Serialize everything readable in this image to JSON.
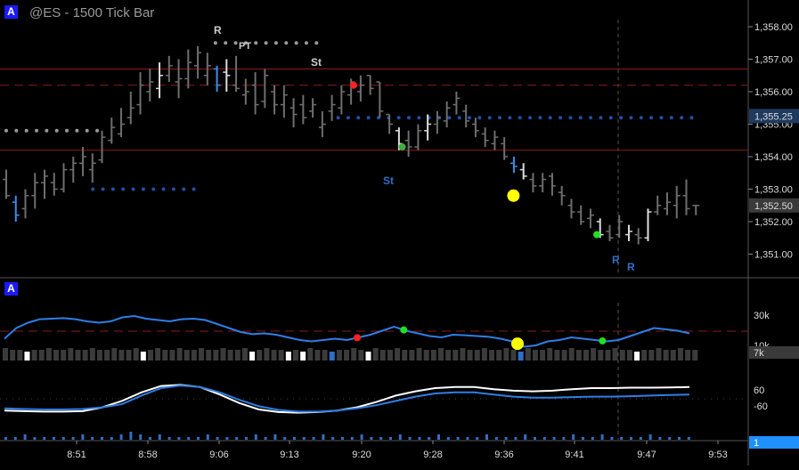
{
  "window": {
    "title": "@ES - 1500 Tick Bar",
    "panel_badge_top": "A",
    "panel_badge_bottom": "A"
  },
  "price_axis": {
    "ticks": [
      "1,358.00",
      "1,357.00",
      "1,356.00",
      "1,355.00",
      "1,354.00",
      "1,353.00",
      "1,352.00",
      "1,351.00"
    ],
    "tick_values": [
      1358,
      1357,
      1356,
      1355,
      1354,
      1353,
      1352,
      1351
    ],
    "current_label": "1,355.25",
    "current_value": 1355.25,
    "last_label": "1,352.50",
    "last_value": 1352.5
  },
  "time_axis": {
    "labels": [
      "8:51",
      "8:58",
      "9:06",
      "9:13",
      "9:20",
      "9:28",
      "9:36",
      "9:41",
      "9:47",
      "9:53"
    ]
  },
  "annotations": {
    "r_top": "R",
    "pt": "PT",
    "st_top": "St",
    "st_mid": "St",
    "r_low1": "R",
    "r_low2": "R"
  },
  "indicator_axis": {
    "volume_labels": [
      "30k",
      "10k"
    ],
    "volume_current": "7k",
    "osc_labels": [
      "60",
      "-60"
    ],
    "bottom_value": "1"
  },
  "colors": {
    "background": "#000000",
    "bar": "#6e6e6e",
    "bar_highlight": "#dddddd",
    "bar_blue": "#3a8ee8",
    "level_line": "#8b1a1a",
    "dots_blue": "#1f4fa8",
    "dots_grey": "#9a9a9a",
    "badge": "#1a1aff",
    "osc_white": "#ffffff",
    "osc_blue": "#2f7ee6"
  },
  "chart_data": {
    "type": "ohlc",
    "bars": [
      [
        1353.3,
        1353.6,
        1352.7,
        1352.8
      ],
      [
        1352.6,
        1352.8,
        1352.0,
        1352.2
      ],
      [
        1352.4,
        1353.0,
        1352.1,
        1352.8
      ],
      [
        1352.8,
        1353.5,
        1352.4,
        1353.2
      ],
      [
        1353.2,
        1353.6,
        1352.7,
        1353.4
      ],
      [
        1353.2,
        1353.5,
        1352.8,
        1353.0
      ],
      [
        1353.0,
        1353.8,
        1352.9,
        1353.6
      ],
      [
        1353.6,
        1354.0,
        1353.2,
        1353.8
      ],
      [
        1353.8,
        1354.3,
        1353.4,
        1354.0
      ],
      [
        1353.6,
        1354.1,
        1353.2,
        1353.8
      ],
      [
        1353.9,
        1354.8,
        1353.8,
        1354.6
      ],
      [
        1354.5,
        1355.2,
        1354.4,
        1354.9
      ],
      [
        1354.7,
        1355.5,
        1354.6,
        1355.0
      ],
      [
        1355.2,
        1356.0,
        1355.0,
        1355.5
      ],
      [
        1355.6,
        1356.6,
        1355.3,
        1356.2
      ],
      [
        1356.0,
        1356.7,
        1355.7,
        1356.3
      ],
      [
        1356.1,
        1356.9,
        1355.8,
        1356.5
      ],
      [
        1356.5,
        1357.1,
        1356.3,
        1356.8
      ],
      [
        1356.3,
        1357.0,
        1355.8,
        1356.4
      ],
      [
        1356.4,
        1357.3,
        1356.1,
        1356.9
      ],
      [
        1356.8,
        1357.4,
        1356.4,
        1357.2
      ],
      [
        1356.5,
        1357.2,
        1356.2,
        1356.8
      ],
      [
        1356.7,
        1356.8,
        1356.0,
        1356.2
      ],
      [
        1356.6,
        1357.0,
        1356.0,
        1356.5
      ],
      [
        1356.2,
        1357.1,
        1356.0,
        1356.1
      ],
      [
        1355.9,
        1356.4,
        1355.6,
        1356.0
      ],
      [
        1356.2,
        1356.6,
        1355.3,
        1355.6
      ],
      [
        1355.7,
        1356.7,
        1355.5,
        1356.5
      ],
      [
        1356.0,
        1356.2,
        1355.3,
        1355.6
      ],
      [
        1355.6,
        1356.2,
        1355.2,
        1355.9
      ],
      [
        1355.5,
        1355.8,
        1354.9,
        1355.3
      ],
      [
        1355.6,
        1355.9,
        1355.0,
        1355.2
      ],
      [
        1355.4,
        1355.8,
        1355.2,
        1355.6
      ],
      [
        1354.9,
        1355.4,
        1354.6,
        1355.0
      ],
      [
        1355.4,
        1355.9,
        1355.1,
        1355.6
      ],
      [
        1355.5,
        1356.2,
        1355.3,
        1356.0
      ],
      [
        1355.9,
        1356.4,
        1355.6,
        1356.3
      ],
      [
        1356.0,
        1356.5,
        1355.7,
        1356.2
      ],
      [
        1356.5,
        1356.5,
        1355.9,
        1356.1
      ],
      [
        1356.3,
        1356.3,
        1355.2,
        1355.4
      ],
      [
        1355.3,
        1355.3,
        1354.7,
        1355.0
      ],
      [
        1354.8,
        1354.9,
        1354.2,
        1354.4
      ],
      [
        1354.5,
        1354.8,
        1354.0,
        1354.3
      ],
      [
        1354.3,
        1355.0,
        1354.2,
        1354.8
      ],
      [
        1354.8,
        1355.3,
        1354.5,
        1355.0
      ],
      [
        1355.0,
        1355.4,
        1354.7,
        1355.2
      ],
      [
        1355.1,
        1355.7,
        1354.9,
        1355.5
      ],
      [
        1355.6,
        1356.0,
        1355.3,
        1355.8
      ],
      [
        1355.4,
        1355.6,
        1354.9,
        1355.1
      ],
      [
        1355.0,
        1355.2,
        1354.6,
        1354.8
      ],
      [
        1354.7,
        1354.9,
        1354.3,
        1354.5
      ],
      [
        1354.4,
        1354.8,
        1354.2,
        1354.6
      ],
      [
        1354.4,
        1354.6,
        1353.9,
        1354.0
      ],
      [
        1353.8,
        1354.0,
        1353.5,
        1353.7
      ],
      [
        1353.6,
        1353.8,
        1353.3,
        1353.4
      ],
      [
        1353.3,
        1353.5,
        1352.9,
        1353.1
      ],
      [
        1353.1,
        1353.5,
        1352.9,
        1353.3
      ],
      [
        1353.4,
        1353.5,
        1352.8,
        1353.1
      ],
      [
        1352.9,
        1353.1,
        1352.5,
        1352.8
      ],
      [
        1352.5,
        1352.7,
        1352.1,
        1352.3
      ],
      [
        1352.3,
        1352.5,
        1351.9,
        1352.0
      ],
      [
        1352.1,
        1352.4,
        1351.8,
        1352.2
      ],
      [
        1352.0,
        1352.1,
        1351.5,
        1351.6
      ],
      [
        1351.7,
        1351.9,
        1351.4,
        1351.5
      ],
      [
        1351.6,
        1352.2,
        1351.5,
        1352.0
      ],
      [
        1351.6,
        1351.9,
        1351.4,
        1351.7
      ],
      [
        1351.6,
        1351.8,
        1351.3,
        1351.5
      ],
      [
        1351.5,
        1352.4,
        1351.4,
        1352.3
      ],
      [
        1352.3,
        1352.8,
        1352.2,
        1352.5
      ],
      [
        1352.4,
        1352.9,
        1352.2,
        1352.6
      ],
      [
        1352.5,
        1353.1,
        1352.1,
        1352.8
      ],
      [
        1352.8,
        1353.3,
        1352.2,
        1352.4
      ],
      [
        1352.5,
        1352.5,
        1352.2,
        1352.5
      ]
    ],
    "highlight_bars": {
      "white": [
        16,
        23,
        41,
        44,
        54,
        62,
        65,
        67
      ],
      "blue": [
        1,
        22,
        53
      ]
    },
    "levels": {
      "upper_solid": 1356.7,
      "dashed": 1356.2,
      "lower_solid": 1354.2
    },
    "dotted_levels": [
      {
        "price": 1357.5,
        "from_bar": 29,
        "to_bar": 44,
        "color": "grey"
      },
      {
        "price": 1355.2,
        "from_bar": 46,
        "to_bar": 96,
        "color": "blue"
      },
      {
        "price": 1354.8,
        "from_bar": 0,
        "to_bar": 13,
        "color": "grey"
      },
      {
        "price": 1353.0,
        "from_bar": 12,
        "to_bar": 27,
        "color": "blue"
      }
    ],
    "markers": [
      {
        "bar": 50,
        "price": 1356.2,
        "color": "#ff2020",
        "r": 4
      },
      {
        "bar": 57,
        "price": 1354.3,
        "color": "#3ab03a",
        "r": 4
      },
      {
        "bar": 73,
        "price": 1352.8,
        "color": "#ffff00",
        "r": 7
      },
      {
        "bar": 85,
        "price": 1351.6,
        "color": "#20e020",
        "r": 4
      }
    ],
    "volume_line": [
      0.15,
      0.55,
      0.75,
      0.88,
      0.9,
      0.92,
      0.88,
      0.8,
      0.75,
      0.8,
      0.95,
      1.0,
      0.9,
      0.85,
      0.8,
      0.88,
      0.9,
      0.85,
      0.7,
      0.55,
      0.4,
      0.32,
      0.35,
      0.3,
      0.2,
      0.1,
      0.05,
      0.1,
      0.15,
      0.1,
      0.2,
      0.3,
      0.45,
      0.6,
      0.45,
      0.35,
      0.25,
      0.2,
      0.3,
      0.28,
      0.25,
      0.22,
      0.15,
      0.05,
      -0.15,
      -0.1,
      0.05,
      0.1,
      0.2,
      0.15,
      0.1,
      0.05,
      0.1,
      0.25,
      0.4,
      0.55,
      0.5,
      0.45,
      0.35
    ],
    "volume_markers": [
      {
        "at": 0.515,
        "color": "#ff2020",
        "r": 4
      },
      {
        "at": 0.583,
        "color": "#20e020",
        "r": 4
      },
      {
        "at": 0.749,
        "color": "#ffff00",
        "r": 7
      },
      {
        "at": 0.873,
        "color": "#20e020",
        "r": 4
      }
    ],
    "volume_boxes": [
      0,
      0,
      0,
      1,
      0,
      0,
      0,
      0,
      0,
      0,
      0,
      0,
      0,
      0,
      0,
      0,
      0,
      0,
      0,
      1,
      0,
      0,
      0,
      0,
      0,
      0,
      0,
      0,
      0,
      0,
      0,
      0,
      0,
      0,
      1,
      0,
      0,
      0,
      0,
      1,
      0,
      1,
      0,
      0,
      0,
      2,
      0,
      0,
      0,
      0,
      1,
      0,
      0,
      0,
      0,
      0,
      0,
      0,
      0,
      0,
      0,
      0,
      0,
      0,
      0,
      0,
      0,
      0,
      0,
      0,
      0,
      2,
      0,
      0,
      0,
      0,
      0,
      0,
      0,
      0,
      0,
      0,
      0,
      0,
      0,
      0,
      0,
      1,
      0,
      0,
      0,
      0,
      0,
      0,
      0,
      0,
      0,
      0
    ],
    "osc_white": [
      -0.55,
      -0.58,
      -0.6,
      -0.6,
      -0.58,
      -0.4,
      -0.1,
      0.3,
      0.6,
      0.65,
      0.55,
      0.2,
      -0.2,
      -0.5,
      -0.62,
      -0.65,
      -0.62,
      -0.55,
      -0.4,
      -0.15,
      0.15,
      0.35,
      0.5,
      0.55,
      0.55,
      0.45,
      0.38,
      0.35,
      0.38,
      0.45,
      0.5,
      0.5,
      0.52,
      0.52,
      0.53,
      0.55
    ],
    "osc_blue": [
      -0.45,
      -0.48,
      -0.5,
      -0.5,
      -0.48,
      -0.4,
      -0.25,
      0.15,
      0.5,
      0.62,
      0.55,
      0.3,
      -0.05,
      -0.35,
      -0.52,
      -0.6,
      -0.6,
      -0.55,
      -0.45,
      -0.3,
      -0.1,
      0.1,
      0.25,
      0.3,
      0.3,
      0.2,
      0.1,
      0.05,
      0.05,
      0.08,
      0.1,
      0.1,
      0.12,
      0.15,
      0.18,
      0.2
    ],
    "bottom_histogram": [
      1,
      1,
      2,
      1,
      1,
      1,
      1,
      1,
      2,
      1,
      1,
      1,
      2,
      3,
      2,
      1,
      2,
      1,
      1,
      1,
      1,
      2,
      1,
      1,
      1,
      1,
      2,
      1,
      2,
      1,
      1,
      1,
      1,
      2,
      1,
      1,
      1,
      2,
      1,
      1,
      1,
      2,
      1,
      1,
      1,
      2,
      1,
      1,
      1,
      1,
      2,
      1,
      1,
      1,
      2,
      1,
      1,
      1,
      1,
      2,
      1,
      1,
      2,
      1,
      1,
      1,
      1,
      2,
      1,
      1,
      1,
      1
    ]
  }
}
